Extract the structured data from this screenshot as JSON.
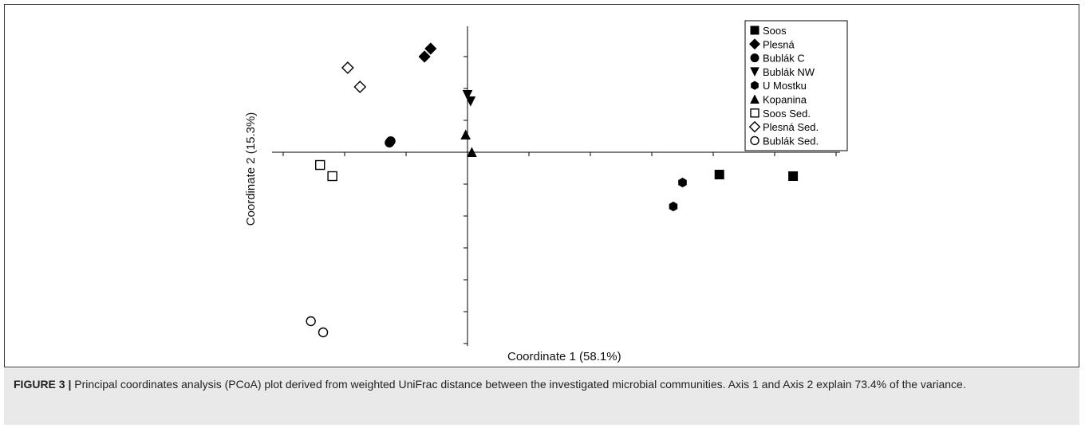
{
  "chart_data": {
    "type": "scatter",
    "title": "",
    "xlabel": "Coordinate 1 (58.1%)",
    "ylabel": "Coordinate 2 (15.3%)",
    "grid": false,
    "legend_position": "top-right",
    "series": [
      {
        "name": "Soos",
        "marker": "square-filled",
        "points": [
          [
            4.1,
            -0.7
          ],
          [
            5.3,
            -0.75
          ]
        ]
      },
      {
        "name": "Plesná",
        "marker": "diamond-filled",
        "points": [
          [
            -0.7,
            3.0
          ],
          [
            -0.6,
            3.25
          ]
        ]
      },
      {
        "name": "Bublák C",
        "marker": "circle-filled",
        "points": [
          [
            -1.27,
            0.3
          ],
          [
            -1.25,
            0.35
          ]
        ]
      },
      {
        "name": "Bublák NW",
        "marker": "triangle-down-filled",
        "points": [
          [
            0.0,
            1.8
          ],
          [
            0.05,
            1.6
          ]
        ]
      },
      {
        "name": "U Mostku",
        "marker": "hexagon-filled",
        "points": [
          [
            3.5,
            -0.95
          ],
          [
            3.35,
            -1.7
          ]
        ]
      },
      {
        "name": "Kopanina",
        "marker": "triangle-up-filled",
        "points": [
          [
            -0.03,
            0.55
          ],
          [
            0.07,
            0.0
          ]
        ]
      },
      {
        "name": "Soos Sed.",
        "marker": "square-open",
        "points": [
          [
            -2.4,
            -0.4
          ],
          [
            -2.2,
            -0.75
          ]
        ]
      },
      {
        "name": "Plesná Sed.",
        "marker": "diamond-open",
        "points": [
          [
            -1.95,
            2.65
          ],
          [
            -1.75,
            2.05
          ]
        ]
      },
      {
        "name": "Bublák Sed.",
        "marker": "circle-open",
        "points": [
          [
            -2.55,
            -5.3
          ],
          [
            -2.35,
            -5.65
          ]
        ]
      }
    ]
  },
  "caption": {
    "label": "FIGURE 3 |",
    "text": " Principal coordinates analysis (PCoA) plot derived from weighted UniFrac distance between the investigated microbial communities. Axis 1 and Axis 2 explain 73.4% of the variance."
  }
}
